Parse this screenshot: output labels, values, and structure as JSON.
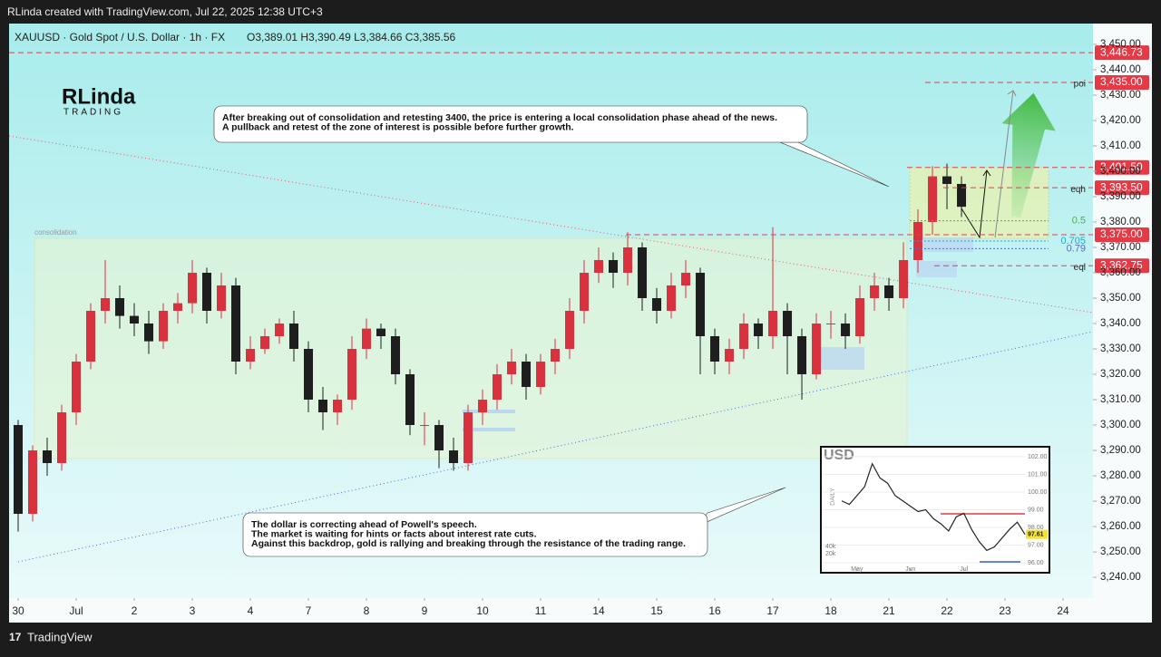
{
  "header": {
    "credit": "RLinda created with TradingView.com, Jul 22, 2025 12:38 UTC+3",
    "symbol": "XAUUSD · Gold Spot / U.S. Dollar · 1h · FX",
    "ohlc": "O3,389.01  H3,390.49  L3,384.66  C3,385.56"
  },
  "logo": {
    "name": "RLinda",
    "sub": "TRADING"
  },
  "footer": {
    "brand": "TradingView"
  },
  "chart_data": {
    "type": "candlestick",
    "open": [
      3300,
      3265,
      3290,
      3285,
      3305,
      3325,
      3345,
      3350,
      3343,
      3340,
      3333,
      3345,
      3348,
      3360,
      3345,
      3355,
      3325,
      3330,
      3335,
      3340,
      3330,
      3310,
      3305,
      3310,
      3330,
      3338,
      3335,
      3320,
      3300,
      3300,
      3290,
      3285,
      3305,
      3310,
      3320,
      3325,
      3315,
      3325,
      3330,
      3345,
      3360,
      3365,
      3360,
      3370,
      3350,
      3345,
      3355,
      3360,
      3335,
      3325,
      3330,
      3340,
      3335,
      3345,
      3335,
      3320,
      3340,
      3340,
      3335,
      3350,
      3355,
      3350,
      3365,
      3380,
      3398,
      3395
    ],
    "high": [
      3302,
      3292,
      3295,
      3308,
      3328,
      3348,
      3365,
      3355,
      3348,
      3345,
      3348,
      3352,
      3365,
      3362,
      3360,
      3358,
      3335,
      3338,
      3342,
      3345,
      3333,
      3315,
      3312,
      3335,
      3342,
      3340,
      3338,
      3322,
      3305,
      3302,
      3295,
      3308,
      3314,
      3324,
      3330,
      3328,
      3328,
      3334,
      3350,
      3365,
      3370,
      3368,
      3376,
      3372,
      3354,
      3360,
      3365,
      3362,
      3338,
      3334,
      3344,
      3342,
      3378,
      3348,
      3338,
      3344,
      3345,
      3344,
      3355,
      3360,
      3358,
      3372,
      3385,
      3402,
      3403,
      3398
    ],
    "low": [
      3258,
      3262,
      3280,
      3282,
      3300,
      3322,
      3340,
      3338,
      3335,
      3328,
      3330,
      3340,
      3344,
      3340,
      3342,
      3320,
      3322,
      3328,
      3332,
      3325,
      3305,
      3298,
      3300,
      3306,
      3326,
      3330,
      3316,
      3296,
      3292,
      3283,
      3282,
      3282,
      3300,
      3306,
      3316,
      3310,
      3312,
      3320,
      3326,
      3340,
      3356,
      3354,
      3355,
      3345,
      3340,
      3342,
      3350,
      3320,
      3320,
      3320,
      3326,
      3330,
      3330,
      3320,
      3310,
      3318,
      3334,
      3330,
      3332,
      3345,
      3345,
      3346,
      3360,
      3375,
      3385,
      3382
    ],
    "close": [
      3265,
      3290,
      3285,
      3305,
      3325,
      3345,
      3350,
      3343,
      3340,
      3333,
      3345,
      3348,
      3360,
      3345,
      3355,
      3325,
      3330,
      3335,
      3340,
      3330,
      3310,
      3305,
      3310,
      3330,
      3338,
      3335,
      3320,
      3300,
      3300,
      3290,
      3285,
      3305,
      3310,
      3320,
      3325,
      3315,
      3325,
      3330,
      3345,
      3360,
      3365,
      3360,
      3370,
      3350,
      3345,
      3355,
      3360,
      3335,
      3325,
      3330,
      3340,
      3335,
      3345,
      3335,
      3320,
      3340,
      3340,
      3335,
      3350,
      3355,
      3350,
      3365,
      3380,
      3398,
      3395,
      3386
    ],
    "up_color": "#d8323f",
    "down_color": "#1e1e1e",
    "xlim": [
      -0.625,
      74.06
    ],
    "ylim": [
      3231.8,
      3458.2
    ],
    "xticks": [
      {
        "value": 0,
        "label": "30"
      },
      {
        "value": 4,
        "label": "Jul"
      },
      {
        "value": 8,
        "label": "2"
      },
      {
        "value": 12,
        "label": "3"
      },
      {
        "value": 16,
        "label": "4"
      },
      {
        "value": 20,
        "label": "7"
      },
      {
        "value": 24,
        "label": "8"
      },
      {
        "value": 28,
        "label": "9"
      },
      {
        "value": 32,
        "label": "10"
      },
      {
        "value": 36,
        "label": "11"
      },
      {
        "value": 40,
        "label": "14"
      },
      {
        "value": 44,
        "label": "15"
      },
      {
        "value": 48,
        "label": "16"
      },
      {
        "value": 52,
        "label": "17"
      },
      {
        "value": 56,
        "label": "18"
      },
      {
        "value": 60,
        "label": "21"
      },
      {
        "value": 64,
        "label": "22"
      },
      {
        "value": 68,
        "label": "23"
      },
      {
        "value": 72,
        "label": "24"
      }
    ],
    "yticks": [
      {
        "value": 3240,
        "label": "3,240.00"
      },
      {
        "value": 3250,
        "label": "3,250.00"
      },
      {
        "value": 3260,
        "label": "3,260.00"
      },
      {
        "value": 3270,
        "label": "3,270.00"
      },
      {
        "value": 3280,
        "label": "3,280.00"
      },
      {
        "value": 3290,
        "label": "3,290.00"
      },
      {
        "value": 3300,
        "label": "3,300.00"
      },
      {
        "value": 3310,
        "label": "3,310.00"
      },
      {
        "value": 3320,
        "label": "3,320.00"
      },
      {
        "value": 3330,
        "label": "3,330.00"
      },
      {
        "value": 3340,
        "label": "3,340.00"
      },
      {
        "value": 3350,
        "label": "3,350.00"
      },
      {
        "value": 3360,
        "label": "3,360.00"
      },
      {
        "value": 3370,
        "label": "3,370.00"
      },
      {
        "value": 3380,
        "label": "3,380.00"
      },
      {
        "value": 3390,
        "label": "3,390.00"
      },
      {
        "value": 3400,
        "label": "3,400.00"
      },
      {
        "value": 3410,
        "label": "3,410.00"
      },
      {
        "value": 3420,
        "label": "3,420.00"
      },
      {
        "value": 3430,
        "label": "3,430.00"
      },
      {
        "value": 3440,
        "label": "3,440.00"
      },
      {
        "value": 3450,
        "label": "3,450.00"
      }
    ],
    "levels": [
      {
        "value": 3446.73,
        "label": "3,446.73"
      },
      {
        "value": 3435,
        "label": "3,435.00",
        "note": "poi"
      },
      {
        "value": 3401.5,
        "label": "3,401.50"
      },
      {
        "value": 3393.5,
        "label": "3,393.50",
        "note": "eqh"
      },
      {
        "value": 3375,
        "label": "3,375.00"
      },
      {
        "value": 3362.75,
        "label": "3,362.75",
        "note": "eql"
      }
    ],
    "fib": [
      {
        "ratio": 0.5,
        "price": 3380.5,
        "color": "#4caf50"
      },
      {
        "ratio": 0.705,
        "price": 3372.5,
        "color": "#26a6c9"
      },
      {
        "ratio": 0.79,
        "price": 3369.5,
        "color": "#5c6bc0"
      }
    ],
    "zone_label": "consolidation",
    "annotations": [
      {
        "lines": [
          "After breaking out of consolidation and retesting 3400, the price is entering a local consolidation phase ahead of the news.",
          "A pullback and retest of the zone of interest is possible before further growth."
        ]
      },
      {
        "lines": [
          "The dollar is correcting ahead of Powell's speech.",
          "The market is waiting for hints or facts about interest rate cuts.",
          "Against this backdrop, gold is rallying and breaking through the resistance of the trading range."
        ]
      }
    ]
  },
  "inset": {
    "title": "USD",
    "side_label": "DAILY",
    "color": "#222",
    "values": [
      99.5,
      99.3,
      99.8,
      100.3,
      101.6,
      100.8,
      100.5,
      99.8,
      99.5,
      99.2,
      98.9,
      99.0,
      98.5,
      98.2,
      97.8,
      98.6,
      98.8,
      97.9,
      97.2,
      96.7,
      96.9,
      97.4,
      97.9,
      98.3,
      97.61
    ],
    "value_labels_last": "97.61",
    "ylim": [
      95.44,
      102.56
    ],
    "xlim": [
      0,
      24
    ],
    "yticks": [
      {
        "value": 102,
        "label": "102.00"
      },
      {
        "value": 101,
        "label": "101.00"
      },
      {
        "value": 100,
        "label": "100.00"
      },
      {
        "value": 99,
        "label": "99.00"
      },
      {
        "value": 98,
        "label": "98.00"
      },
      {
        "value": 97,
        "label": "97.00"
      },
      {
        "value": 96,
        "label": "96.00"
      }
    ],
    "xticks": [
      {
        "value": 2,
        "label": "May"
      },
      {
        "value": 9,
        "label": "Jun"
      },
      {
        "value": 16,
        "label": "Jul"
      }
    ],
    "volume_labels": [
      "40k",
      "20k"
    ]
  }
}
